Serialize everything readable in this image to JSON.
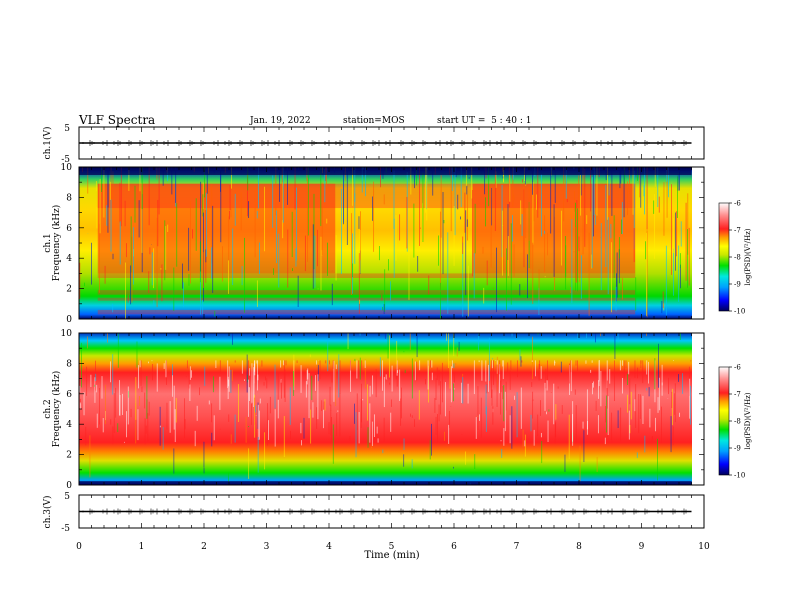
{
  "header": {
    "title": "VLF Spectra",
    "date": "Jan. 19, 2022",
    "station": "station=MOS",
    "start_ut": "start UT =  5 : 40 : 1"
  },
  "chart_data": [
    {
      "type": "line",
      "panel": "ch1-voltage",
      "ylabel": "ch.1(V)",
      "ylim": [
        -5,
        5
      ],
      "yticks": [
        "5",
        "-5"
      ],
      "xlim": [
        0,
        10
      ],
      "x": [
        0,
        1,
        2,
        3,
        4,
        5,
        6,
        7,
        8,
        9,
        9.8
      ],
      "y": [
        0,
        0,
        0,
        0,
        0,
        0,
        0,
        0,
        0,
        0,
        0
      ]
    },
    {
      "type": "heatmap",
      "panel": "ch1-spectrogram",
      "ylabel": "ch.1 Frequency (kHz)",
      "ylim": [
        0,
        10
      ],
      "yticks": [
        "0",
        "2",
        "4",
        "6",
        "8",
        "10"
      ],
      "xlim": [
        0,
        10
      ],
      "data_end_min": 9.8,
      "colorbar": {
        "label": "log(PSD)(V²/Hz)",
        "range": [
          -10,
          -6
        ],
        "ticks": [
          "-6",
          "-7",
          "-8",
          "-9",
          "-10"
        ]
      },
      "intense_bands_kHz": [
        [
          0.3,
          0.6
        ],
        [
          1.2,
          1.4
        ],
        [
          1.6,
          1.9
        ],
        [
          2.7,
          3.0
        ],
        [
          7.3,
          8.9
        ]
      ],
      "intense_intervals_min": [
        [
          0.3,
          4.1
        ],
        [
          6.3,
          8.9
        ]
      ]
    },
    {
      "type": "heatmap",
      "panel": "ch2-spectrogram",
      "ylabel": "ch.2 Frequency (kHz)",
      "ylim": [
        0,
        10
      ],
      "yticks": [
        "0",
        "2",
        "4",
        "6",
        "8",
        "10"
      ],
      "xlim": [
        0,
        10
      ],
      "data_end_min": 9.8,
      "colorbar": {
        "label": "log(PSD)(V²/Hz)",
        "range": [
          -10,
          -6
        ],
        "ticks": [
          "-6",
          "-7",
          "-8",
          "-9",
          "-10"
        ]
      },
      "intense_band_kHz": [
        2.5,
        8.2
      ]
    },
    {
      "type": "line",
      "panel": "ch3-voltage",
      "ylabel": "ch.3(V)",
      "ylim": [
        -5,
        5
      ],
      "yticks": [
        "5",
        "-5"
      ],
      "xlim": [
        0,
        10
      ],
      "x": [
        0,
        1,
        2,
        3,
        4,
        5,
        6,
        7,
        8,
        9,
        9.8
      ],
      "y": [
        0,
        0,
        0,
        0,
        0,
        0,
        0,
        0,
        0,
        0,
        0
      ]
    }
  ],
  "xaxis": {
    "label": "Time (min)",
    "ticks": [
      "0",
      "1",
      "2",
      "3",
      "4",
      "5",
      "6",
      "7",
      "8",
      "9",
      "10"
    ]
  },
  "colormap": [
    "#00005a",
    "#0000ff",
    "#00a0ff",
    "#00e8e0",
    "#00e000",
    "#c8e800",
    "#ffff00",
    "#ffa000",
    "#ff2020",
    "#ff8888",
    "#ffffff"
  ]
}
